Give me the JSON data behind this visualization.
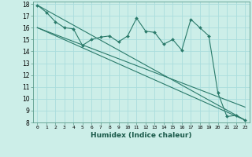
{
  "xlabel": "Humidex (Indice chaleur)",
  "bg_color": "#cceee8",
  "grid_color": "#aadddd",
  "line_color": "#2a7a6a",
  "marker_color": "#2a7a6a",
  "xlim": [
    -0.5,
    23.5
  ],
  "ylim": [
    8,
    18.2
  ],
  "xticks": [
    0,
    1,
    2,
    3,
    4,
    5,
    6,
    7,
    8,
    9,
    10,
    11,
    12,
    13,
    14,
    15,
    16,
    17,
    18,
    19,
    20,
    21,
    22,
    23
  ],
  "yticks": [
    8,
    9,
    10,
    11,
    12,
    13,
    14,
    15,
    16,
    17,
    18
  ],
  "series1_x": [
    0,
    1,
    2,
    3,
    4,
    5,
    6,
    7,
    8,
    9,
    10,
    11,
    12,
    13,
    14,
    15,
    16,
    17,
    18,
    19,
    20,
    21,
    22,
    23
  ],
  "series1_y": [
    17.9,
    17.3,
    16.5,
    16.0,
    15.9,
    14.5,
    15.0,
    15.2,
    15.3,
    14.8,
    15.3,
    16.8,
    15.7,
    15.6,
    14.6,
    15.0,
    14.1,
    16.7,
    16.0,
    15.3,
    10.5,
    8.5,
    8.6,
    8.2
  ],
  "series2_x": [
    0,
    23
  ],
  "series2_y": [
    17.9,
    8.2
  ],
  "series3_x": [
    0,
    23
  ],
  "series3_y": [
    16.0,
    8.2
  ],
  "series4_x": [
    0,
    23
  ],
  "series4_y": [
    16.0,
    9.3
  ]
}
